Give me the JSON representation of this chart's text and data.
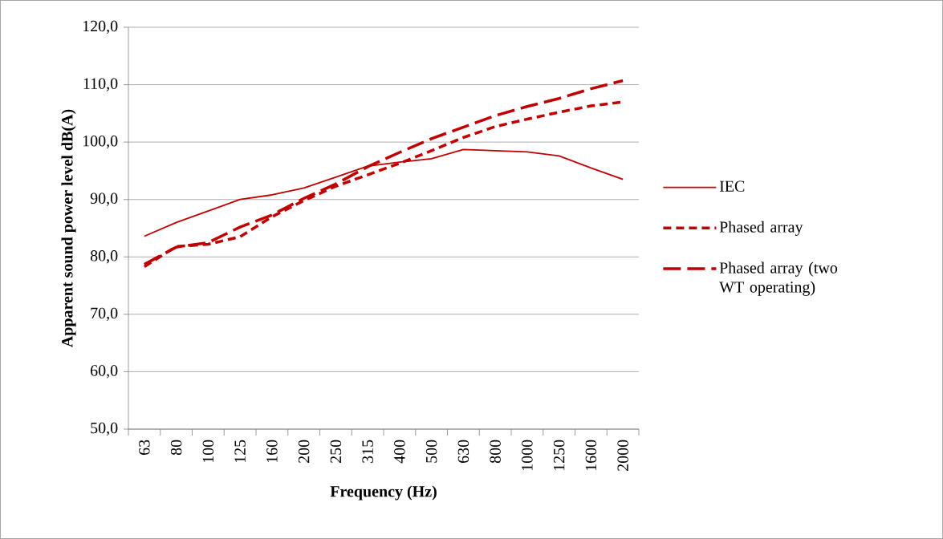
{
  "chart_data": {
    "type": "line",
    "xlabel": "Frequency (Hz)",
    "ylabel": "Apparent sound power level dB(A)",
    "categories": [
      "63",
      "80",
      "100",
      "125",
      "160",
      "200",
      "250",
      "315",
      "400",
      "500",
      "630",
      "800",
      "1000",
      "1250",
      "1600",
      "2000"
    ],
    "series": [
      {
        "name": "IEC",
        "color": "#c00000",
        "line_style": "solid",
        "values": [
          83.6,
          86.0,
          88.0,
          90.0,
          90.8,
          92.0,
          93.9,
          95.8,
          96.5,
          97.1,
          98.7,
          98.5,
          98.3,
          97.6,
          95.5,
          93.5
        ]
      },
      {
        "name": "Phased array",
        "color": "#c00000",
        "line_style": "dashed",
        "values": [
          78.3,
          81.8,
          82.2,
          83.5,
          87.0,
          89.8,
          92.3,
          94.3,
          96.3,
          98.5,
          100.8,
          102.7,
          104.0,
          105.2,
          106.3,
          107.0
        ]
      },
      {
        "name": "Phased array (two WT operating)",
        "color": "#c00000",
        "line_style": "dashed",
        "values": [
          78.7,
          81.7,
          82.5,
          85.2,
          87.3,
          90.2,
          92.7,
          95.7,
          98.2,
          100.6,
          102.6,
          104.6,
          106.2,
          107.6,
          109.3,
          110.7
        ]
      }
    ],
    "ylim": [
      50,
      120
    ],
    "yticks": [
      {
        "value": 50,
        "label": "50,0"
      },
      {
        "value": 60,
        "label": "60,0"
      },
      {
        "value": 70,
        "label": "70,0"
      },
      {
        "value": 80,
        "label": "80,0"
      },
      {
        "value": 90,
        "label": "90,0"
      },
      {
        "value": 100,
        "label": "100,0"
      },
      {
        "value": 110,
        "label": "110,0"
      },
      {
        "value": 120,
        "label": "120,0"
      }
    ],
    "grid": "y",
    "legend": "right",
    "marker": "none"
  }
}
